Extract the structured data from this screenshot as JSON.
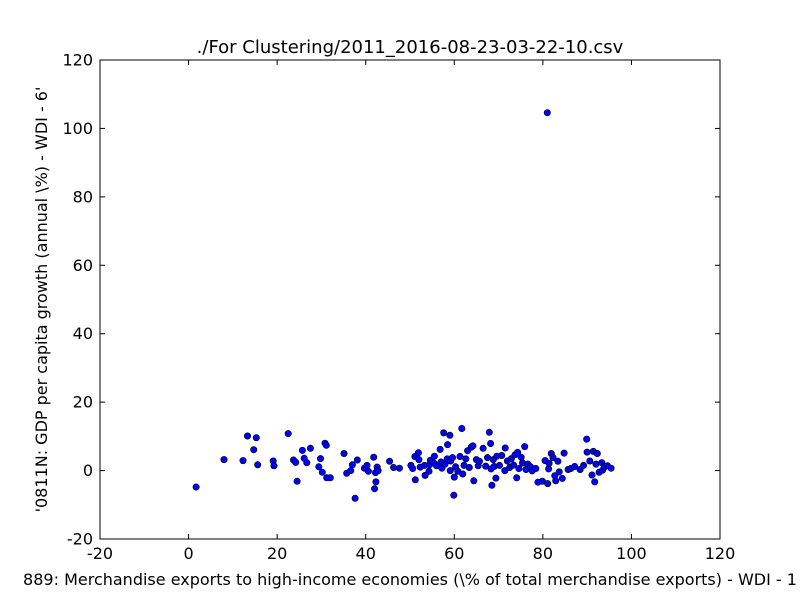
{
  "chart_data": {
    "type": "scatter",
    "title": "./For Clustering/2011_2016-08-23-03-22-10.csv",
    "xlabel": "889: Merchandise exports to high-income economies  (\\% of total merchandise exports) - WDI - 1",
    "ylabel": "'0811N: GDP per capita growth  (annual \\%) - WDI - 6'",
    "xlim": [
      -20,
      120
    ],
    "ylim": [
      -20,
      120
    ],
    "xticks": [
      -20,
      0,
      20,
      40,
      60,
      80,
      100,
      120
    ],
    "yticks": [
      -20,
      0,
      20,
      40,
      60,
      80,
      100,
      120
    ],
    "grid": false,
    "marker_color": "#0000ff",
    "marker_edge": "#000000",
    "points": [
      [
        1.7,
        -4.8
      ],
      [
        8.0,
        3.2
      ],
      [
        12.3,
        2.9
      ],
      [
        13.3,
        10.1
      ],
      [
        14.7,
        6.1
      ],
      [
        15.3,
        9.6
      ],
      [
        15.6,
        1.7
      ],
      [
        19.1,
        2.8
      ],
      [
        19.3,
        1.4
      ],
      [
        22.5,
        10.8
      ],
      [
        23.7,
        3.1
      ],
      [
        24.2,
        2.4
      ],
      [
        24.5,
        -3.1
      ],
      [
        25.7,
        5.9
      ],
      [
        26.1,
        3.6
      ],
      [
        26.7,
        2.3
      ],
      [
        27.5,
        6.5
      ],
      [
        29.4,
        1.1
      ],
      [
        29.8,
        3.5
      ],
      [
        30.2,
        -0.5
      ],
      [
        30.8,
        8.0
      ],
      [
        31.1,
        7.4
      ],
      [
        31.2,
        -2.1
      ],
      [
        32.0,
        -2.1
      ],
      [
        35.1,
        5.0
      ],
      [
        35.7,
        -0.8
      ],
      [
        36.6,
        0.0
      ],
      [
        37.0,
        1.7
      ],
      [
        37.6,
        -8.1
      ],
      [
        38.1,
        3.1
      ],
      [
        39.7,
        0.7
      ],
      [
        40.3,
        1.5
      ],
      [
        40.6,
        -0.2
      ],
      [
        41.8,
        3.9
      ],
      [
        42.0,
        -5.3
      ],
      [
        42.2,
        -0.6
      ],
      [
        42.3,
        -3.3
      ],
      [
        42.6,
        1.0
      ],
      [
        42.8,
        0.0
      ],
      [
        45.4,
        2.7
      ],
      [
        46.3,
        0.9
      ],
      [
        47.6,
        0.7
      ],
      [
        50.2,
        1.5
      ],
      [
        50.6,
        0.6
      ],
      [
        51.1,
        4.1
      ],
      [
        51.2,
        -2.7
      ],
      [
        51.9,
        5.2
      ],
      [
        52.0,
        3.2
      ],
      [
        52.3,
        1.0
      ],
      [
        53.3,
        1.5
      ],
      [
        53.4,
        -1.4
      ],
      [
        54.3,
        -0.2
      ],
      [
        54.4,
        1.7
      ],
      [
        54.6,
        3.0
      ],
      [
        55.4,
        2.2
      ],
      [
        55.5,
        4.2
      ],
      [
        56.0,
        1.4
      ],
      [
        56.8,
        6.2
      ],
      [
        57.0,
        2.5
      ],
      [
        57.2,
        0.7
      ],
      [
        57.6,
        11.0
      ],
      [
        57.9,
        1.9
      ],
      [
        58.4,
        3.4
      ],
      [
        58.5,
        7.6
      ],
      [
        59.0,
        10.3
      ],
      [
        59.1,
        0.0
      ],
      [
        59.2,
        2.8
      ],
      [
        59.6,
        3.8
      ],
      [
        59.9,
        -7.2
      ],
      [
        60.0,
        -1.9
      ],
      [
        60.3,
        1.1
      ],
      [
        60.8,
        -0.2
      ],
      [
        61.3,
        4.1
      ],
      [
        61.7,
        12.3
      ],
      [
        61.9,
        -1.0
      ],
      [
        62.2,
        1.5
      ],
      [
        62.6,
        3.4
      ],
      [
        63.0,
        5.8
      ],
      [
        63.4,
        0.9
      ],
      [
        63.8,
        6.8
      ],
      [
        64.2,
        7.2
      ],
      [
        64.4,
        -3.0
      ],
      [
        65.0,
        3.2
      ],
      [
        65.4,
        1.4
      ],
      [
        65.7,
        2.7
      ],
      [
        66.5,
        6.5
      ],
      [
        67.1,
        1.3
      ],
      [
        67.5,
        3.8
      ],
      [
        67.9,
        11.2
      ],
      [
        68.2,
        7.9
      ],
      [
        68.3,
        0.5
      ],
      [
        68.5,
        -4.3
      ],
      [
        68.8,
        3.2
      ],
      [
        69.0,
        1.2
      ],
      [
        69.4,
        -2.2
      ],
      [
        69.6,
        4.2
      ],
      [
        70.2,
        1.5
      ],
      [
        70.7,
        4.4
      ],
      [
        71.4,
        0.0
      ],
      [
        71.5,
        6.6
      ],
      [
        72.0,
        2.8
      ],
      [
        72.5,
        0.9
      ],
      [
        72.9,
        3.5
      ],
      [
        73.4,
        1.6
      ],
      [
        73.7,
        4.6
      ],
      [
        74.1,
        -2.1
      ],
      [
        74.3,
        5.3
      ],
      [
        74.6,
        0.6
      ],
      [
        75.1,
        3.9
      ],
      [
        75.4,
        2.2
      ],
      [
        75.9,
        7.0
      ],
      [
        76.2,
        0.3
      ],
      [
        76.6,
        1.9
      ],
      [
        77.2,
        1.1
      ],
      [
        77.6,
        -0.1
      ],
      [
        78.4,
        0.6
      ],
      [
        78.9,
        -3.4
      ],
      [
        79.9,
        -3.1
      ],
      [
        80.5,
        2.9
      ],
      [
        81.1,
        -3.8
      ],
      [
        81.3,
        0.5
      ],
      [
        81.4,
        2.1
      ],
      [
        81.9,
        5.0
      ],
      [
        82.3,
        3.8
      ],
      [
        82.7,
        -1.5
      ],
      [
        82.9,
        -3.0
      ],
      [
        83.4,
        2.7
      ],
      [
        83.7,
        -0.4
      ],
      [
        84.4,
        -2.3
      ],
      [
        84.8,
        5.1
      ],
      [
        85.7,
        0.3
      ],
      [
        86.3,
        0.6
      ],
      [
        87.2,
        1.2
      ],
      [
        88.4,
        0.3
      ],
      [
        89.2,
        1.5
      ],
      [
        89.9,
        9.2
      ],
      [
        90.0,
        5.4
      ],
      [
        90.6,
        2.8
      ],
      [
        91.1,
        -1.3
      ],
      [
        91.4,
        5.6
      ],
      [
        91.7,
        -3.3
      ],
      [
        92.0,
        1.9
      ],
      [
        92.3,
        5.0
      ],
      [
        92.7,
        -0.5
      ],
      [
        93.3,
        2.3
      ],
      [
        93.5,
        0.1
      ],
      [
        93.9,
        1.0
      ],
      [
        94.6,
        1.4
      ],
      [
        95.4,
        0.7
      ],
      [
        81.0,
        104.6
      ]
    ]
  }
}
